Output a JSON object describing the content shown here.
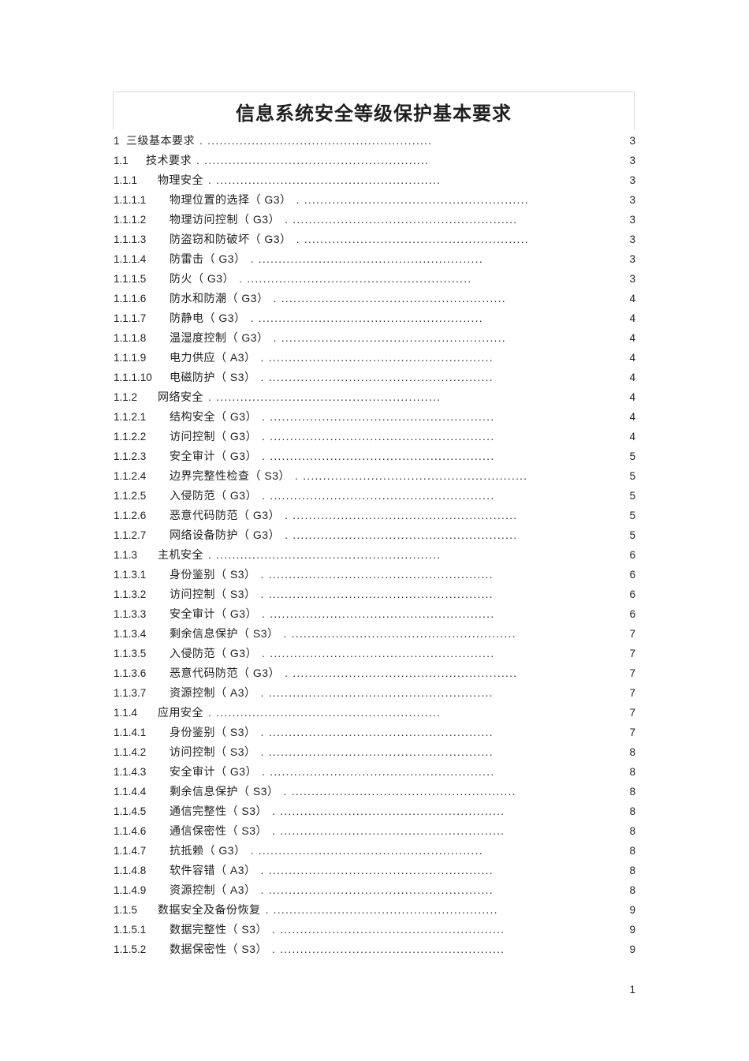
{
  "page": {
    "title": "信息系统安全等级保护基本要求",
    "footer_page_number": "1"
  },
  "colors": {
    "text": "#1f1f1f",
    "title_box_border": "#d8d8d8",
    "background": "#ffffff"
  },
  "toc": {
    "leader": ". ........................................................",
    "rows": [
      {
        "num": "1",
        "title": "三级基本要求",
        "page": "3"
      },
      {
        "num": "1.1",
        "title": "技术要求",
        "page": "3"
      },
      {
        "num": "1.1.1",
        "title": "物理安全",
        "page": "3"
      },
      {
        "num": "1.1.1.1",
        "title": "物理位置的选择（ G3）",
        "page": "3"
      },
      {
        "num": "1.1.1.2",
        "title": "物理访问控制（ G3）",
        "page": "3"
      },
      {
        "num": "1.1.1.3",
        "title": "防盗窃和防破坏（ G3）",
        "page": "3"
      },
      {
        "num": "1.1.1.4",
        "title": "防雷击（ G3）",
        "page": "3"
      },
      {
        "num": "1.1.1.5",
        "title": "防火（ G3）",
        "page": "3"
      },
      {
        "num": "1.1.1.6",
        "title": "防水和防潮（ G3）",
        "page": "4"
      },
      {
        "num": "1.1.1.7",
        "title": "防静电（ G3）",
        "page": "4"
      },
      {
        "num": "1.1.1.8",
        "title": "温湿度控制（ G3）",
        "page": "4"
      },
      {
        "num": "1.1.1.9",
        "title": "电力供应（ A3）",
        "page": "4"
      },
      {
        "num": "1.1.1.10",
        "title": "电磁防护（ S3）",
        "page": "4"
      },
      {
        "num": "1.1.2",
        "title": "网络安全",
        "page": "4"
      },
      {
        "num": "1.1.2.1",
        "title": "结构安全（ G3）",
        "page": "4"
      },
      {
        "num": "1.1.2.2",
        "title": "访问控制（ G3）",
        "page": "4"
      },
      {
        "num": "1.1.2.3",
        "title": "安全审计（ G3）",
        "page": "5"
      },
      {
        "num": "1.1.2.4",
        "title": "边界完整性检查（ S3）",
        "page": "5"
      },
      {
        "num": "1.1.2.5",
        "title": "入侵防范（ G3）",
        "page": "5"
      },
      {
        "num": "1.1.2.6",
        "title": "恶意代码防范（ G3）",
        "page": "5"
      },
      {
        "num": "1.1.2.7",
        "title": "网络设备防护（ G3）",
        "page": "5"
      },
      {
        "num": "1.1.3",
        "title": "主机安全",
        "page": "6"
      },
      {
        "num": "1.1.3.1",
        "title": "身份鉴别（ S3）",
        "page": "6"
      },
      {
        "num": "1.1.3.2",
        "title": "访问控制（ S3）",
        "page": "6"
      },
      {
        "num": "1.1.3.3",
        "title": "安全审计（ G3）",
        "page": "6"
      },
      {
        "num": "1.1.3.4",
        "title": "剩余信息保护（ S3）",
        "page": "7"
      },
      {
        "num": "1.1.3.5",
        "title": "入侵防范（ G3）",
        "page": "7"
      },
      {
        "num": "1.1.3.6",
        "title": "恶意代码防范（ G3）",
        "page": "7"
      },
      {
        "num": "1.1.3.7",
        "title": "资源控制（ A3）",
        "page": "7"
      },
      {
        "num": "1.1.4",
        "title": "应用安全",
        "page": "7"
      },
      {
        "num": "1.1.4.1",
        "title": "身份鉴别（ S3）",
        "page": "7"
      },
      {
        "num": "1.1.4.2",
        "title": "访问控制（ S3）",
        "page": "8"
      },
      {
        "num": "1.1.4.3",
        "title": "安全审计（ G3）",
        "page": "8"
      },
      {
        "num": "1.1.4.4",
        "title": "剩余信息保护（ S3）",
        "page": "8"
      },
      {
        "num": "1.1.4.5",
        "title": "通信完整性（ S3）",
        "page": "8"
      },
      {
        "num": "1.1.4.6",
        "title": "通信保密性（ S3）",
        "page": "8"
      },
      {
        "num": "1.1.4.7",
        "title": "抗抵赖（ G3）",
        "page": "8"
      },
      {
        "num": "1.1.4.8",
        "title": "软件容错（ A3）",
        "page": "8"
      },
      {
        "num": "1.1.4.9",
        "title": "资源控制（ A3）",
        "page": "8"
      },
      {
        "num": "1.1.5",
        "title": "数据安全及备份恢复",
        "page": "9"
      },
      {
        "num": "1.1.5.1",
        "title": "数据完整性（ S3）",
        "page": "9"
      },
      {
        "num": "1.1.5.2",
        "title": "数据保密性（ S3）",
        "page": "9"
      }
    ]
  }
}
